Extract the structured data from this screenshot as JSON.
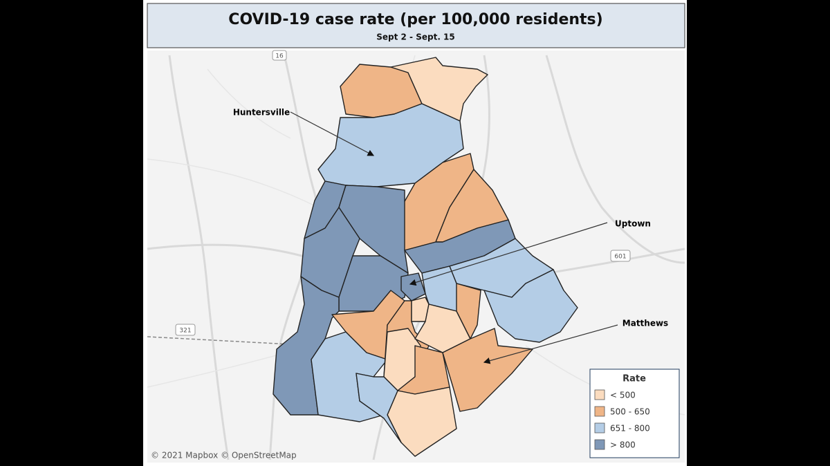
{
  "header": {
    "title": "COVID-19 case rate (per 100,000 residents)",
    "subtitle": "Sept 2 - Sept. 15"
  },
  "annotations": [
    "Huntersville",
    "Uptown",
    "Matthews"
  ],
  "legend": {
    "title": "Rate",
    "items": [
      {
        "label": "< 500",
        "color": "#fbdcbf"
      },
      {
        "label": "500 - 650",
        "color": "#efb587"
      },
      {
        "label": "651 - 800",
        "color": "#b4cde6"
      },
      {
        "label": "> 800",
        "color": "#7f98b7"
      }
    ]
  },
  "road_shields": [
    "16",
    "601",
    "321"
  ],
  "attribution": "© 2021 Mapbox © OpenStreetMap"
}
